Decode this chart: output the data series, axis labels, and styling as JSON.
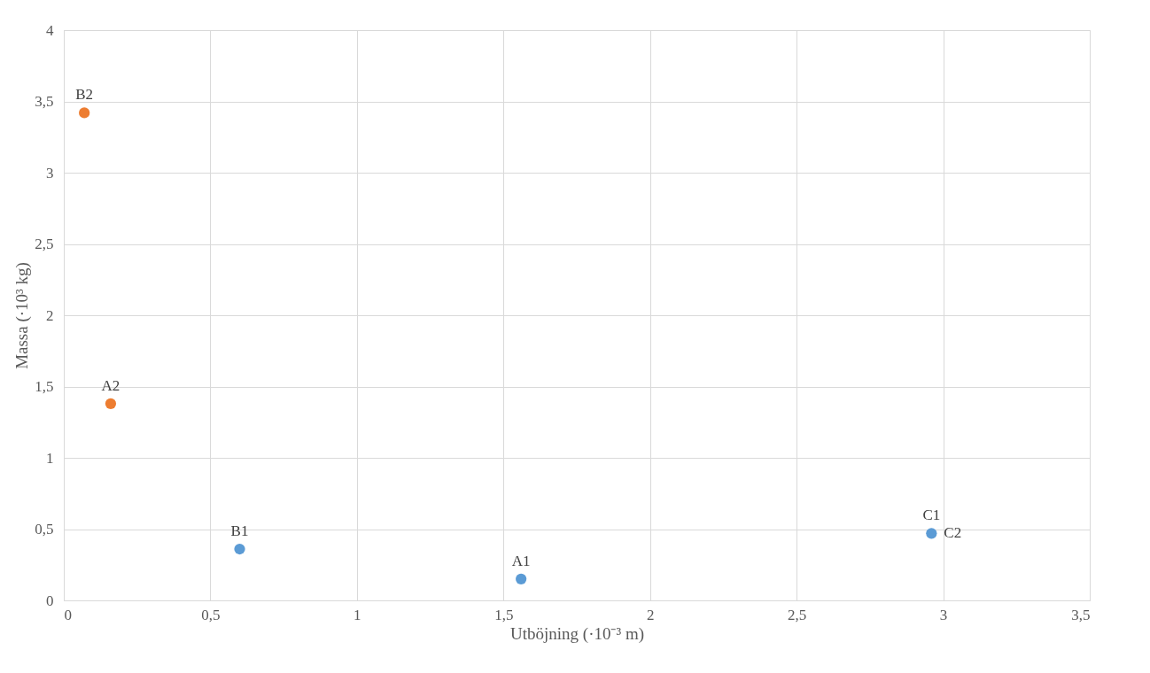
{
  "chart_data": {
    "type": "scatter",
    "xlabel": "Utböjning (·10⁻³ m)",
    "ylabel": "Massa (·10³ kg)",
    "series": [
      {
        "color": "#5b9bd5",
        "x": [
          1.56,
          0.6,
          2.96
        ],
        "values": [
          0.15,
          0.36,
          0.47
        ]
      },
      {
        "color": "#ed7d31",
        "x": [
          0.16,
          0.07
        ],
        "values": [
          1.38,
          3.42
        ]
      }
    ],
    "xlim": [
      0,
      3.5
    ],
    "xticks": [
      0,
      {
        "value": 0.5,
        "label": "0,5"
      },
      1,
      {
        "value": 1.5,
        "label": "1,5"
      },
      2,
      {
        "value": 2.5,
        "label": "2,5"
      },
      3,
      {
        "value": 3.5,
        "label": "3,5"
      }
    ],
    "ylim": [
      0,
      4
    ],
    "yticks": [
      0,
      {
        "value": 0.5,
        "label": "0,5"
      },
      1,
      {
        "value": 1.5,
        "label": "1,5"
      },
      2,
      {
        "value": 2.5,
        "label": "2,5"
      },
      3,
      {
        "value": 3.5,
        "label": "3,5"
      },
      4
    ],
    "grid": true,
    "marker": "circle",
    "annotations": [
      {
        "text": "A1",
        "x": 1.56,
        "y": 0.15
      },
      {
        "text": "B1",
        "x": 0.6,
        "y": 0.36
      },
      {
        "text": "C1",
        "x": 2.96,
        "y": 0.47
      },
      {
        "text": "C2",
        "x": 2.96,
        "y": 0.47
      },
      {
        "text": "A2",
        "x": 0.16,
        "y": 1.38
      },
      {
        "text": "B2",
        "x": 0.07,
        "y": 3.42
      }
    ]
  }
}
